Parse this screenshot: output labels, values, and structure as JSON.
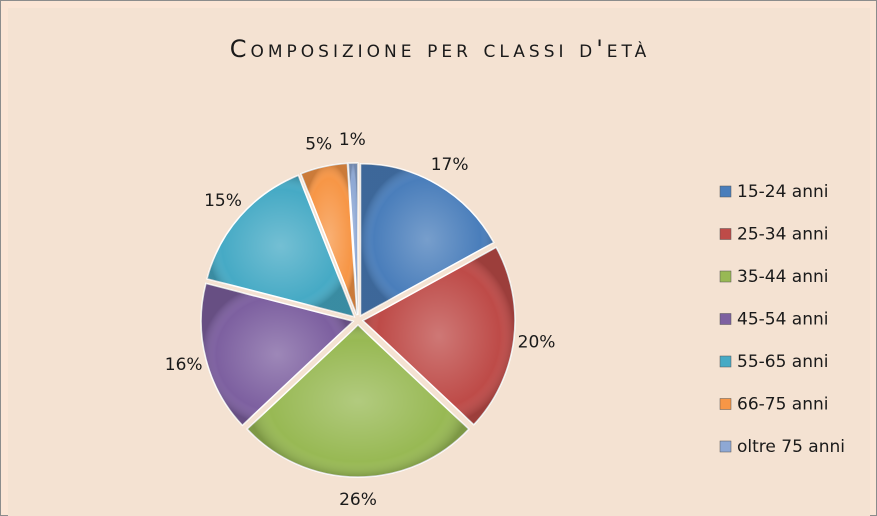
{
  "chart_data": {
    "type": "pie",
    "title": "Composizione per classi d'età",
    "categories": [
      "15-24 anni",
      "25-34 anni",
      "35-44 anni",
      "45-54 anni",
      "55-65 anni",
      "66-75 anni",
      "oltre 75 anni"
    ],
    "values": [
      17,
      20,
      26,
      16,
      15,
      5,
      1
    ],
    "value_labels": [
      "17%",
      "20%",
      "26%",
      "16%",
      "15%",
      "5%",
      "1%"
    ],
    "colors": [
      "#4a7ebb",
      "#be4b48",
      "#98b954",
      "#7d60a0",
      "#46aac5",
      "#f79646",
      "#8ea8d4"
    ],
    "legend": "right"
  }
}
